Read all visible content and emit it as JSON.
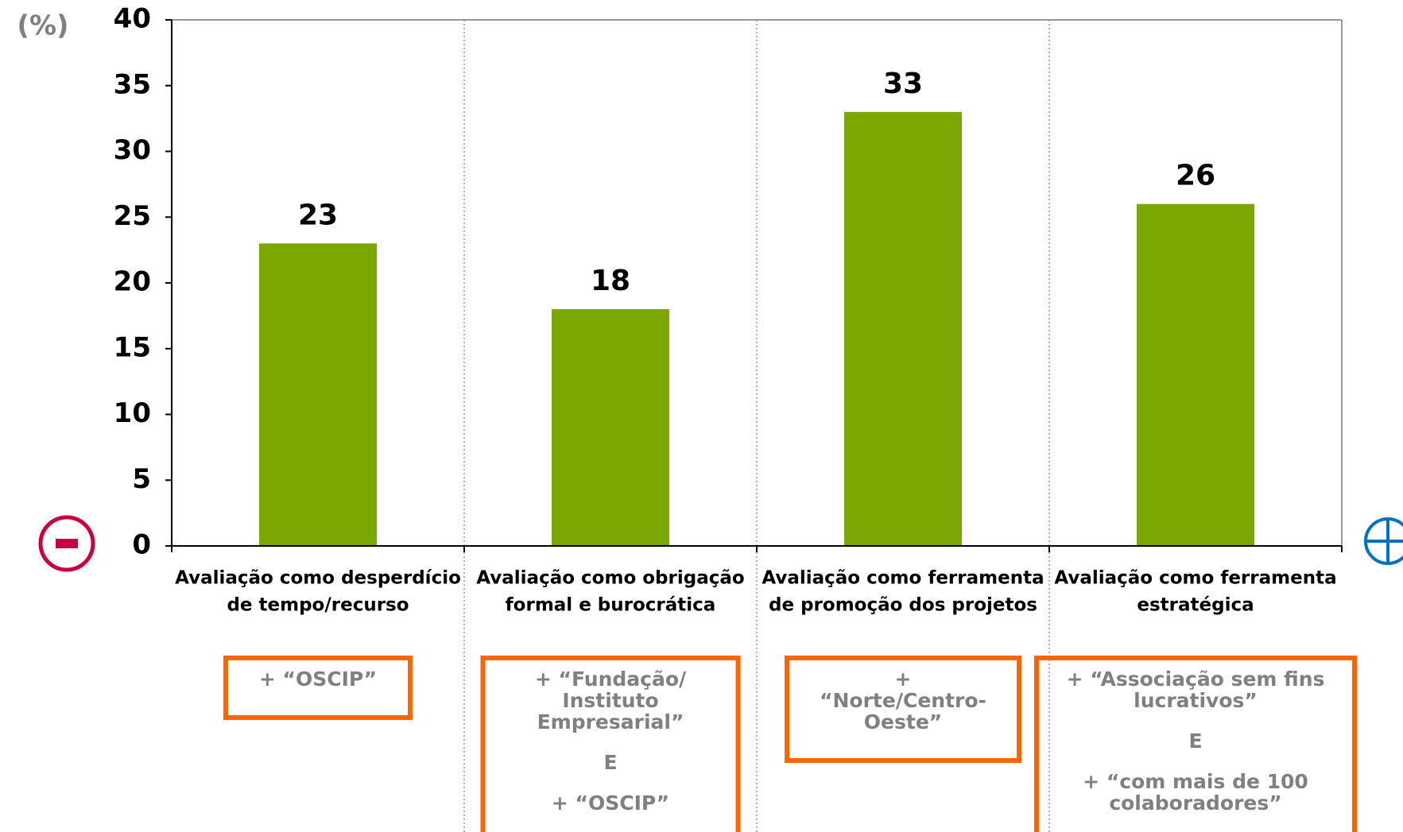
{
  "chart_data": {
    "type": "bar",
    "y_label": "(%)",
    "categories": [
      [
        "Avaliação como desperdício",
        "de tempo/recurso"
      ],
      [
        "Avaliação como obrigação",
        "formal e burocrática"
      ],
      [
        "Avaliação como ferramenta",
        "de promoção dos projetos"
      ],
      [
        "Avaliação como ferramenta",
        "estratégica"
      ]
    ],
    "values": [
      23,
      18,
      33,
      26
    ],
    "color": "#7aa800",
    "ylim": [
      0,
      40
    ],
    "yticks": [
      0,
      5,
      10,
      15,
      20,
      25,
      30,
      35,
      40
    ],
    "annotations": [
      [
        [
          "+ “OSCIP”"
        ]
      ],
      [
        [
          "+ “Fundação/",
          "Instituto",
          "Empresarial”"
        ],
        [
          "E"
        ],
        [
          "+ “OSCIP”"
        ]
      ],
      [
        [
          "+",
          "“Norte/Centro-",
          "Oeste”"
        ]
      ],
      [
        [
          "+ “Associação sem fins",
          "lucrativos”"
        ],
        [
          "E"
        ],
        [
          "+ “com mais de 100",
          "colaboradores”"
        ]
      ]
    ]
  }
}
